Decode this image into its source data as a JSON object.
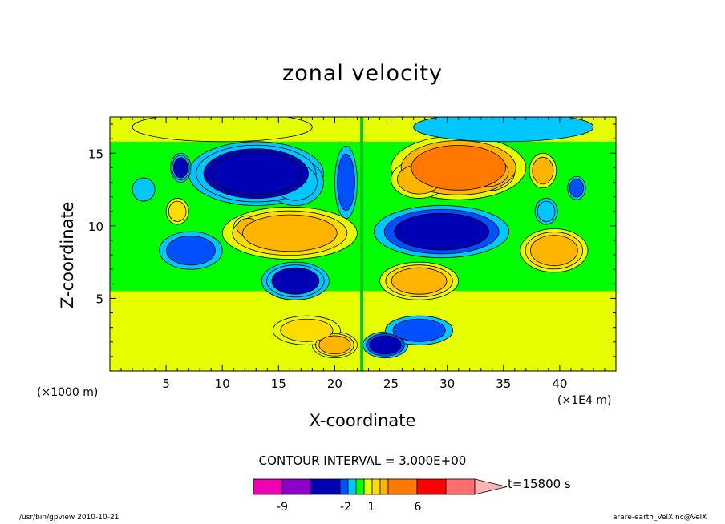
{
  "chart_data": {
    "type": "heatmap",
    "subtype": "filled-contour",
    "title": "zonal velocity",
    "xlabel": "X-coordinate",
    "ylabel": "Z-coordinate",
    "x_unit_label": "(×1E4 m)",
    "y_unit_label": "(×1000 m)",
    "xlim": [
      0,
      45
    ],
    "ylim": [
      0,
      17.5
    ],
    "x_ticks": [
      5,
      10,
      15,
      20,
      25,
      30,
      35,
      40
    ],
    "y_ticks": [
      5,
      10,
      15
    ],
    "contour_interval_text": "CONTOUR INTERVAL = 3.000E+00",
    "time_text": "t=15800 s",
    "colorbar": {
      "labels": [
        "-9",
        "-2",
        "1",
        "6"
      ],
      "colors": [
        "#f000b4",
        "#8c00c8",
        "#0000b4",
        "#0050ff",
        "#00c8ff",
        "#00ff00",
        "#e6ff00",
        "#ffdc00",
        "#ffb400",
        "#ff7800",
        "#ff0000",
        "#ff6e6e",
        "#ffb4b4"
      ]
    },
    "blobs": [
      {
        "x": 13,
        "y": 13.6,
        "rx": 6,
        "ry": 2.2,
        "v": -7
      },
      {
        "x": 11.5,
        "y": 13.7,
        "rx": 3,
        "ry": 1.3,
        "v": -3
      },
      {
        "x": 16.5,
        "y": 13.0,
        "rx": 2.5,
        "ry": 1.6,
        "v": -3
      },
      {
        "x": 21.0,
        "y": 13.0,
        "rx": 1.0,
        "ry": 2.5,
        "v": -4
      },
      {
        "x": 6.3,
        "y": 14.0,
        "rx": 0.9,
        "ry": 1.0,
        "v": -5
      },
      {
        "x": 31,
        "y": 14.0,
        "rx": 6,
        "ry": 2.2,
        "v": 6
      },
      {
        "x": 27.5,
        "y": 13.2,
        "rx": 2.5,
        "ry": 1.3,
        "v": 4
      },
      {
        "x": 33.5,
        "y": 13.7,
        "rx": 2.5,
        "ry": 1.3,
        "v": 4
      },
      {
        "x": 38.5,
        "y": 13.8,
        "rx": 1.2,
        "ry": 1.2,
        "v": 4
      },
      {
        "x": 16,
        "y": 9.5,
        "rx": 6,
        "ry": 1.8,
        "v": 5
      },
      {
        "x": 12.3,
        "y": 9.9,
        "rx": 1.3,
        "ry": 0.8,
        "v": 4
      },
      {
        "x": 17.2,
        "y": 9.7,
        "rx": 1.3,
        "ry": 0.8,
        "v": 4
      },
      {
        "x": 29.5,
        "y": 9.6,
        "rx": 6,
        "ry": 1.8,
        "v": -6
      },
      {
        "x": 27.5,
        "y": 9.4,
        "rx": 1.5,
        "ry": 0.9,
        "v": -3
      },
      {
        "x": 32.2,
        "y": 9.9,
        "rx": 1.2,
        "ry": 0.8,
        "v": -3
      },
      {
        "x": 7.2,
        "y": 8.3,
        "rx": 2.8,
        "ry": 1.3,
        "v": -4
      },
      {
        "x": 39.5,
        "y": 8.3,
        "rx": 3,
        "ry": 1.5,
        "v": 5
      },
      {
        "x": 16.5,
        "y": 6.2,
        "rx": 3,
        "ry": 1.3,
        "v": -5
      },
      {
        "x": 27.5,
        "y": 6.2,
        "rx": 3.5,
        "ry": 1.3,
        "v": 5
      },
      {
        "x": 20.0,
        "y": 1.8,
        "rx": 2.0,
        "ry": 0.9,
        "v": 5
      },
      {
        "x": 24.5,
        "y": 1.8,
        "rx": 2.0,
        "ry": 0.9,
        "v": -6
      },
      {
        "x": 17.5,
        "y": 2.8,
        "rx": 3.0,
        "ry": 1.0,
        "v": 3
      },
      {
        "x": 27.5,
        "y": 2.8,
        "rx": 3.0,
        "ry": 1.0,
        "v": -4
      },
      {
        "x": 10.0,
        "y": 16.8,
        "rx": 8,
        "ry": 1.0,
        "v": 2
      },
      {
        "x": 35.0,
        "y": 16.8,
        "rx": 8,
        "ry": 1.0,
        "v": -2
      },
      {
        "x": 6.0,
        "y": 11.0,
        "rx": 1.0,
        "ry": 0.9,
        "v": 3
      },
      {
        "x": 38.8,
        "y": 11.0,
        "rx": 1.0,
        "ry": 0.9,
        "v": -3
      },
      {
        "x": 41.5,
        "y": 12.6,
        "rx": 0.8,
        "ry": 0.8,
        "v": -4
      },
      {
        "x": 3.0,
        "y": 12.5,
        "rx": 1.0,
        "ry": 0.8,
        "v": -2
      }
    ],
    "base_bands": [
      {
        "y0": 0,
        "y1": 1.6,
        "v": 1.5
      },
      {
        "y0": 1.6,
        "y1": 5.5,
        "v": 1.5
      },
      {
        "y0": 5.5,
        "y1": 11.5,
        "v": 0
      },
      {
        "y0": 11.5,
        "y1": 15.8,
        "v": 0
      },
      {
        "y0": 15.8,
        "y1": 17.5,
        "v": 1.5
      }
    ]
  },
  "footer": {
    "left": "/usr/bin/gpview  2010-10-21",
    "right": "arare-earth_VelX.nc@VelX"
  }
}
